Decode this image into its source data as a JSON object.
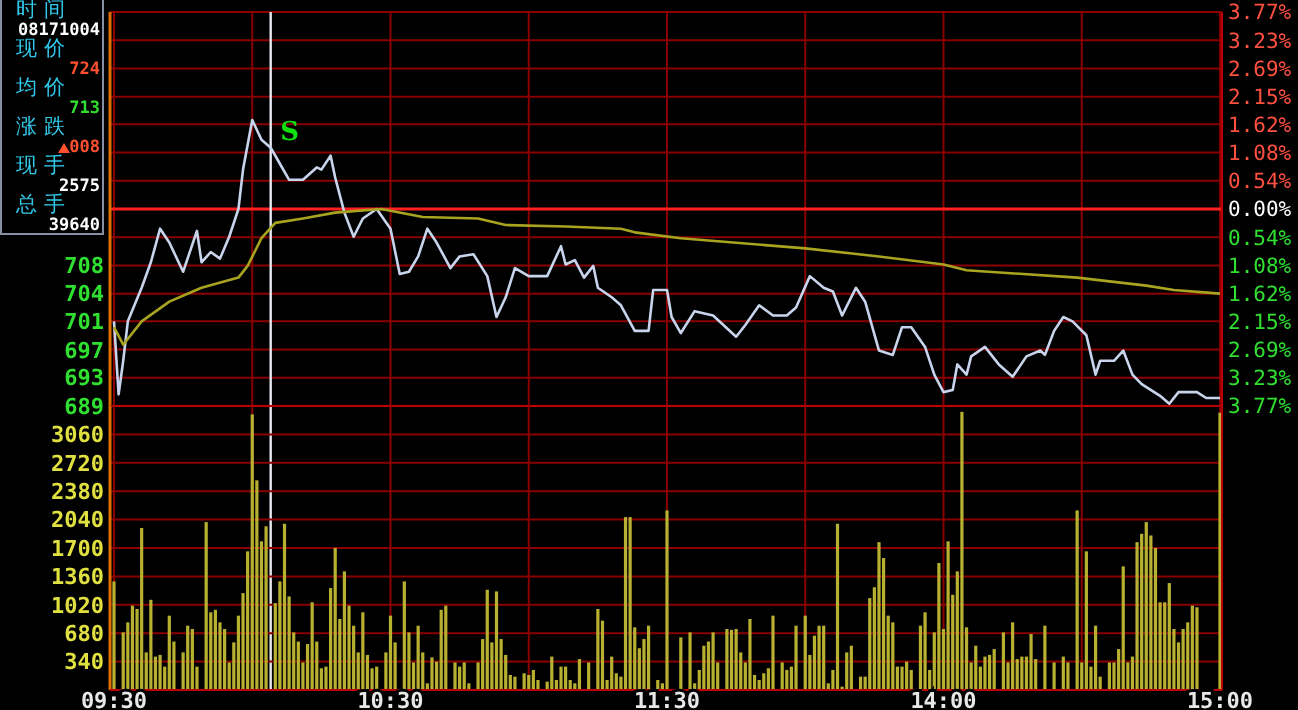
{
  "chart_data": [
    {
      "type": "line",
      "annotations": [
        "时间",
        "08171004",
        "现价",
        "724",
        "均价",
        "713",
        "涨跌",
        "008",
        "现手",
        "2575",
        "总手",
        "39640",
        "S"
      ],
      "categories": [
        null,
        null,
        null,
        null,
        null,
        null,
        null,
        null,
        null,
        null,
        null,
        null,
        null,
        null,
        null,
        null,
        null,
        null,
        null,
        null,
        null,
        null,
        null,
        null,
        null,
        null,
        null,
        null,
        null,
        null,
        null,
        null,
        null,
        null,
        null,
        null,
        null,
        null,
        null,
        null,
        null,
        null,
        null,
        null,
        null,
        null,
        null,
        null,
        null,
        null,
        null,
        null,
        null,
        null,
        null,
        null,
        null,
        null,
        null,
        null,
        null,
        null,
        null,
        null,
        null,
        null,
        null,
        null,
        null,
        null,
        null,
        null,
        null,
        null,
        null,
        null,
        null,
        null,
        null,
        null,
        null,
        null,
        null,
        null,
        null,
        null,
        null,
        null,
        null,
        null,
        null,
        null,
        null,
        null,
        null,
        null,
        null,
        null,
        null,
        null,
        null,
        null,
        null,
        null,
        null,
        null,
        null,
        null,
        null,
        null,
        null,
        null,
        null,
        null,
        null,
        null,
        null,
        null,
        null,
        null,
        null,
        null,
        null,
        null,
        null,
        null,
        null,
        null,
        null,
        null,
        null,
        null,
        null,
        null,
        null,
        null,
        null,
        null,
        null,
        null,
        null,
        null,
        null,
        null,
        null,
        null,
        null,
        null,
        null,
        null,
        null,
        null,
        null,
        null,
        null,
        null,
        null,
        null,
        null,
        null,
        null,
        null,
        null,
        null,
        null,
        null,
        null,
        null,
        null,
        null,
        null,
        null,
        null,
        null,
        null,
        null,
        null,
        null,
        null,
        null,
        null,
        null,
        null,
        null,
        null,
        null,
        null,
        null,
        null,
        null,
        null,
        null,
        null,
        null,
        null,
        null,
        null,
        null,
        null,
        null,
        null,
        null,
        null,
        null,
        null,
        null,
        null,
        null,
        null,
        null,
        null,
        null,
        null,
        null,
        null,
        null,
        null,
        null,
        null,
        null,
        null,
        null,
        null,
        null,
        null,
        null,
        null,
        null,
        null,
        null,
        null,
        null,
        null,
        null,
        null,
        null,
        null,
        null,
        null,
        null,
        null
      ],
      "ylim": [
        689,
        743
      ],
      "yticks": [
        {
          "value": 689,
          "label": "689"
        },
        {
          "value": 692.9,
          "label": "693"
        },
        {
          "value": 696.7,
          "label": "697"
        },
        {
          "value": 700.6,
          "label": "701"
        },
        {
          "value": 704.4,
          "label": "704"
        },
        {
          "value": 708.3,
          "label": "708"
        }
      ],
      "y2lim": [
        -3.77,
        3.77
      ],
      "y2ticks": [
        {
          "value": 3.77,
          "label": "3.77%"
        },
        {
          "value": 3.23,
          "label": "3.23%"
        },
        {
          "value": 2.69,
          "label": "2.69%"
        },
        {
          "value": 2.15,
          "label": "2.15%"
        },
        {
          "value": 1.62,
          "label": "1.62%"
        },
        {
          "value": 1.08,
          "label": "1.08%"
        },
        {
          "value": 0.54,
          "label": "0.54%"
        },
        {
          "value": 0,
          "label": "0.00%"
        },
        {
          "value": -0.54,
          "label": "0.54%"
        },
        {
          "value": -1.08,
          "label": "1.08%"
        },
        {
          "value": -1.62,
          "label": "1.62%"
        },
        {
          "value": -2.15,
          "label": "2.15%"
        },
        {
          "value": -2.69,
          "label": "2.69%"
        },
        {
          "value": -3.23,
          "label": "3.23%"
        },
        {
          "value": -3.77,
          "label": "3.77%"
        }
      ],
      "tick_labels": "y",
      "grid": true,
      "ref_lines": [
        {
          "axis": "y2",
          "value": 0,
          "color": "#ff2020"
        }
      ],
      "series": [
        {
          "color": "#c8d4ec",
          "values": [
            700.6,
            690.6,
            695.2,
            700.6,
            null,
            null,
            705.2,
            null,
            708.7,
            null,
            713.3,
            null,
            711.4,
            null,
            null,
            707.4,
            null,
            null,
            713.0,
            708.7,
            null,
            710.1,
            null,
            709.2,
            null,
            712.2,
            null,
            716.0,
            721.4,
            null,
            728.2,
            null,
            725.5,
            null,
            724.4,
            null,
            722.2,
            null,
            720.0,
            null,
            null,
            720.0,
            null,
            null,
            721.7,
            721.4,
            null,
            723.3,
            720.3,
            null,
            715.5,
            null,
            712.2,
            null,
            714.7,
            null,
            null,
            716.0,
            null,
            null,
            713.3,
            null,
            707.1,
            null,
            707.4,
            null,
            709.5,
            null,
            713.3,
            null,
            711.4,
            null,
            null,
            707.9,
            null,
            709.5,
            null,
            null,
            709.8,
            null,
            null,
            706.8,
            null,
            701.2,
            null,
            703.9,
            null,
            707.9,
            null,
            null,
            706.8,
            null,
            null,
            null,
            706.8,
            null,
            null,
            710.9,
            708.4,
            null,
            709.0,
            null,
            706.6,
            null,
            708.2,
            705.2,
            null,
            null,
            703.9,
            null,
            702.8,
            null,
            null,
            699.3,
            null,
            null,
            699.3,
            704.9,
            null,
            null,
            704.9,
            701.2,
            null,
            699.0,
            null,
            null,
            702.0,
            null,
            null,
            null,
            701.4,
            null,
            null,
            null,
            null,
            698.5,
            null,
            700.1,
            null,
            null,
            702.8,
            null,
            null,
            701.4,
            null,
            null,
            701.4,
            null,
            702.5,
            null,
            null,
            706.8,
            null,
            null,
            705.2,
            null,
            704.7,
            null,
            701.4,
            null,
            null,
            705.2,
            null,
            703.3,
            null,
            null,
            696.6,
            null,
            null,
            696.0,
            null,
            699.8,
            null,
            699.8,
            null,
            null,
            697.1,
            null,
            693.3,
            null,
            690.9,
            null,
            691.2,
            694.7,
            null,
            693.3,
            695.8,
            null,
            null,
            697.1,
            null,
            null,
            694.7,
            null,
            null,
            693.0,
            null,
            null,
            695.8,
            null,
            null,
            696.6,
            696.0,
            null,
            699.3,
            null,
            701.2,
            null,
            700.6,
            null,
            null,
            698.7,
            null,
            693.3,
            695.2,
            null,
            null,
            695.2,
            null,
            696.6,
            null,
            693.3,
            null,
            692.0,
            null,
            null,
            null,
            690.4,
            null,
            689.3,
            null,
            690.9,
            null,
            null,
            null,
            690.9,
            null,
            690.1,
            null,
            null,
            690.1
          ]
        },
        {
          "color": "#a8a420",
          "values": [
            699.8,
            null,
            697.4,
            null,
            null,
            null,
            700.6,
            null,
            null,
            null,
            null,
            null,
            703.3,
            null,
            null,
            null,
            null,
            null,
            null,
            705.2,
            null,
            null,
            null,
            null,
            null,
            null,
            null,
            706.6,
            null,
            708.2,
            null,
            null,
            712.0,
            null,
            null,
            714.1,
            null,
            null,
            null,
            null,
            null,
            714.7,
            null,
            null,
            null,
            null,
            null,
            null,
            715.5,
            null,
            null,
            null,
            null,
            null,
            null,
            null,
            null,
            null,
            716.0,
            null,
            null,
            null,
            null,
            null,
            null,
            null,
            null,
            714.9,
            null,
            null,
            null,
            null,
            null,
            null,
            null,
            null,
            null,
            null,
            null,
            714.7,
            null,
            null,
            null,
            null,
            null,
            713.8,
            null,
            null,
            null,
            null,
            null,
            null,
            null,
            null,
            null,
            null,
            null,
            null,
            713.6,
            null,
            null,
            null,
            null,
            null,
            null,
            null,
            null,
            null,
            null,
            null,
            713.3,
            null,
            null,
            712.8,
            null,
            null,
            null,
            null,
            null,
            null,
            null,
            null,
            null,
            712.0,
            null,
            null,
            null,
            null,
            null,
            null,
            null,
            null,
            null,
            null,
            null,
            null,
            null,
            null,
            null,
            null,
            null,
            null,
            null,
            null,
            null,
            null,
            null,
            null,
            null,
            null,
            710.6,
            null,
            null,
            null,
            null,
            null,
            null,
            null,
            null,
            null,
            null,
            null,
            null,
            null,
            null,
            null,
            709.5,
            null,
            null,
            null,
            null,
            null,
            null,
            null,
            null,
            null,
            null,
            null,
            null,
            null,
            708.4,
            null,
            null,
            null,
            null,
            707.6,
            null,
            null,
            null,
            null,
            null,
            null,
            null,
            null,
            null,
            null,
            null,
            null,
            null,
            null,
            null,
            null,
            null,
            null,
            null,
            null,
            null,
            null,
            null,
            706.6,
            null,
            null,
            null,
            null,
            null,
            null,
            null,
            null,
            null,
            null,
            null,
            null,
            null,
            null,
            705.5,
            null,
            null,
            null,
            null,
            null,
            704.9,
            null,
            null,
            null,
            null,
            null,
            null,
            null,
            null,
            null,
            704.4
          ]
        }
      ]
    },
    {
      "type": "bar",
      "categories": [
        "09:30",
        null,
        null,
        null,
        null,
        null,
        null,
        null,
        null,
        null,
        null,
        null,
        null,
        null,
        null,
        null,
        null,
        null,
        null,
        null,
        null,
        null,
        null,
        null,
        null,
        null,
        null,
        null,
        null,
        null,
        null,
        null,
        null,
        null,
        null,
        null,
        null,
        null,
        null,
        null,
        null,
        null,
        null,
        null,
        null,
        null,
        null,
        null,
        null,
        null,
        null,
        null,
        null,
        null,
        null,
        null,
        null,
        null,
        null,
        null,
        "10:30",
        null,
        null,
        null,
        null,
        null,
        null,
        null,
        null,
        null,
        null,
        null,
        null,
        null,
        null,
        null,
        null,
        null,
        null,
        null,
        null,
        null,
        null,
        null,
        null,
        null,
        null,
        null,
        null,
        null,
        null,
        null,
        null,
        null,
        null,
        null,
        null,
        null,
        null,
        null,
        null,
        null,
        null,
        null,
        null,
        null,
        null,
        null,
        null,
        null,
        null,
        null,
        null,
        null,
        null,
        null,
        null,
        null,
        null,
        null,
        "11:30",
        null,
        null,
        null,
        null,
        null,
        null,
        null,
        null,
        null,
        null,
        null,
        null,
        null,
        null,
        null,
        null,
        null,
        null,
        null,
        null,
        null,
        null,
        null,
        null,
        null,
        null,
        null,
        null,
        null,
        null,
        null,
        null,
        null,
        null,
        null,
        null,
        null,
        null,
        null,
        null,
        null,
        null,
        null,
        null,
        null,
        null,
        null,
        null,
        null,
        null,
        null,
        null,
        null,
        null,
        null,
        null,
        null,
        null,
        null,
        "14:00",
        null,
        null,
        null,
        null,
        null,
        null,
        null,
        null,
        null,
        null,
        null,
        null,
        null,
        null,
        null,
        null,
        null,
        null,
        null,
        null,
        null,
        null,
        null,
        null,
        null,
        null,
        null,
        null,
        null,
        null,
        null,
        null,
        null,
        null,
        null,
        null,
        null,
        null,
        null,
        null,
        null,
        null,
        null,
        null,
        null,
        null,
        null,
        null,
        null,
        null,
        null,
        null,
        null,
        null,
        null,
        null,
        null,
        null,
        null,
        "15:00"
      ],
      "ylim": [
        0,
        3400
      ],
      "yticks": [
        340,
        680,
        1020,
        1360,
        1700,
        2040,
        2380,
        2720,
        3060
      ],
      "grid": true,
      "series": [
        {
          "color": "#b8b030",
          "values": [
            1300,
            null,
            690,
            810,
            1010,
            970,
            1940,
            450,
            1080,
            400,
            420,
            280,
            890,
            580,
            null,
            450,
            770,
            730,
            280,
            null,
            2010,
            930,
            960,
            810,
            730,
            330,
            570,
            890,
            1160,
            1660,
            3300,
            2510,
            1780,
            1960,
            null,
            1040,
            1300,
            1990,
            1120,
            690,
            580,
            330,
            550,
            1050,
            580,
            260,
            280,
            1220,
            1700,
            850,
            1420,
            1010,
            770,
            450,
            930,
            420,
            260,
            280,
            null,
            450,
            890,
            570,
            null,
            1300,
            690,
            330,
            770,
            450,
            80,
            390,
            340,
            960,
            1010,
            null,
            330,
            280,
            330,
            80,
            null,
            330,
            610,
            1200,
            570,
            1180,
            610,
            420,
            180,
            160,
            null,
            200,
            180,
            240,
            120,
            null,
            100,
            400,
            120,
            280,
            280,
            120,
            80,
            370,
            null,
            330,
            null,
            970,
            830,
            120,
            400,
            200,
            160,
            2070,
            2070,
            750,
            500,
            610,
            770,
            null,
            120,
            80,
            2150,
            null,
            null,
            630,
            null,
            690,
            80,
            240,
            530,
            580,
            690,
            330,
            null,
            730,
            720,
            730,
            450,
            330,
            850,
            180,
            120,
            200,
            260,
            890,
            null,
            330,
            240,
            280,
            770,
            null,
            890,
            420,
            650,
            770,
            770,
            80,
            240,
            1990,
            40,
            450,
            530,
            null,
            160,
            160,
            1100,
            1230,
            1770,
            1580,
            890,
            810,
            280,
            280,
            340,
            240,
            null,
            770,
            930,
            240,
            690,
            1520,
            730,
            1780,
            1140,
            1420,
            3330,
            750,
            330,
            530,
            280,
            400,
            420,
            490,
            null,
            690,
            330,
            810,
            370,
            400,
            400,
            670,
            370,
            null,
            770,
            null,
            330,
            null,
            400,
            330,
            null,
            2150,
            330,
            1660,
            280,
            770,
            160,
            null,
            330,
            330,
            490,
            1480,
            330,
            400,
            1770,
            1870,
            2010,
            1850,
            1700,
            1050,
            1050,
            1280,
            730,
            570,
            730,
            810,
            1010,
            990,
            null,
            null,
            null,
            null,
            3320
          ]
        }
      ]
    }
  ]
}
